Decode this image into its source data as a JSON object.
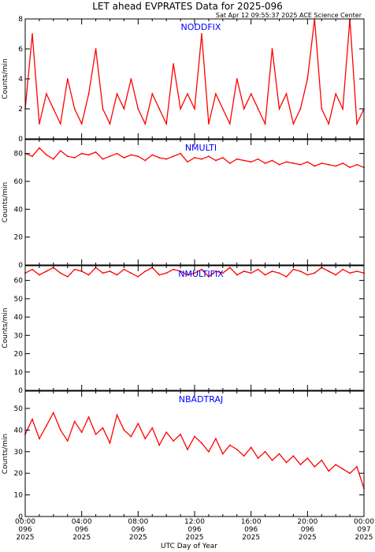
{
  "title": "LET ahead EVPRATES Data for 2025-096",
  "timestamp": "Sat Apr 12 09:55:37 2025 ACE Science Center",
  "xlabel": "UTC Day of Year",
  "colors": {
    "trace": "#ff0000",
    "panel_label": "#0000ff",
    "axis": "#000000"
  },
  "x_ticks": [
    {
      "time": "00:00",
      "doy": "096",
      "year": "2025"
    },
    {
      "time": "04:00",
      "doy": "096",
      "year": "2025"
    },
    {
      "time": "08:00",
      "doy": "096",
      "year": "2025"
    },
    {
      "time": "12:00",
      "doy": "096",
      "year": "2025"
    },
    {
      "time": "16:00",
      "doy": "096",
      "year": "2025"
    },
    {
      "time": "20:00",
      "doy": "096",
      "year": "2025"
    },
    {
      "time": "00:00",
      "doy": "097",
      "year": "2025"
    }
  ],
  "chart_data": [
    {
      "type": "line",
      "name": "NODDFIX",
      "ylabel": "Counts/min",
      "xlim_hours": [
        0,
        24
      ],
      "ylim": [
        0,
        8
      ],
      "yticks": [
        0,
        2,
        4,
        6,
        8
      ],
      "x_hours": [
        0,
        0.5,
        1,
        1.5,
        2,
        2.5,
        3,
        3.5,
        4,
        4.5,
        5,
        5.5,
        6,
        6.5,
        7,
        7.5,
        8,
        8.5,
        9,
        9.5,
        10,
        10.5,
        11,
        11.5,
        12,
        12.5,
        13,
        13.5,
        14,
        14.5,
        15,
        15.5,
        16,
        16.5,
        17,
        17.5,
        18,
        18.5,
        19,
        19.5,
        20,
        20.5,
        21,
        21.5,
        22,
        22.5,
        23,
        23.5,
        24
      ],
      "values": [
        2,
        7,
        1,
        3,
        2,
        1,
        4,
        2,
        1,
        3,
        6,
        2,
        1,
        3,
        2,
        4,
        2,
        1,
        3,
        2,
        1,
        5,
        2,
        3,
        2,
        7,
        1,
        3,
        2,
        1,
        4,
        2,
        3,
        2,
        1,
        6,
        2,
        3,
        1,
        2,
        4,
        8,
        2,
        1,
        3,
        2,
        8,
        1,
        2
      ]
    },
    {
      "type": "line",
      "name": "NMULTI",
      "ylabel": "Counts/min",
      "xlim_hours": [
        0,
        24
      ],
      "ylim": [
        0,
        90
      ],
      "yticks": [
        0,
        20,
        40,
        60,
        80
      ],
      "x_hours": [
        0,
        0.5,
        1,
        1.5,
        2,
        2.5,
        3,
        3.5,
        4,
        4.5,
        5,
        5.5,
        6,
        6.5,
        7,
        7.5,
        8,
        8.5,
        9,
        9.5,
        10,
        10.5,
        11,
        11.5,
        12,
        12.5,
        13,
        13.5,
        14,
        14.5,
        15,
        15.5,
        16,
        16.5,
        17,
        17.5,
        18,
        18.5,
        19,
        19.5,
        20,
        20.5,
        21,
        21.5,
        22,
        22.5,
        23,
        23.5,
        24
      ],
      "values": [
        80,
        78,
        84,
        79,
        76,
        82,
        78,
        77,
        80,
        79,
        81,
        76,
        78,
        80,
        77,
        79,
        78,
        75,
        79,
        77,
        76,
        78,
        80,
        74,
        77,
        76,
        78,
        75,
        77,
        73,
        76,
        75,
        74,
        76,
        73,
        75,
        72,
        74,
        73,
        72,
        74,
        71,
        73,
        72,
        71,
        73,
        70,
        72,
        70
      ]
    },
    {
      "type": "line",
      "name": "NMULTIFIX",
      "ylabel": "Counts/min",
      "xlim_hours": [
        0,
        24
      ],
      "ylim": [
        0,
        68
      ],
      "yticks": [
        0,
        10,
        20,
        30,
        40,
        50,
        60
      ],
      "x_hours": [
        0,
        0.5,
        1,
        1.5,
        2,
        2.5,
        3,
        3.5,
        4,
        4.5,
        5,
        5.5,
        6,
        6.5,
        7,
        7.5,
        8,
        8.5,
        9,
        9.5,
        10,
        10.5,
        11,
        11.5,
        12,
        12.5,
        13,
        13.5,
        14,
        14.5,
        15,
        15.5,
        16,
        16.5,
        17,
        17.5,
        18,
        18.5,
        19,
        19.5,
        20,
        20.5,
        21,
        21.5,
        22,
        22.5,
        23,
        23.5,
        24
      ],
      "values": [
        64,
        66,
        63,
        65,
        67,
        64,
        62,
        66,
        65,
        63,
        67,
        64,
        65,
        63,
        66,
        64,
        62,
        65,
        67,
        63,
        64,
        66,
        65,
        63,
        64,
        66,
        62,
        65,
        64,
        67,
        63,
        65,
        64,
        66,
        63,
        65,
        64,
        62,
        66,
        65,
        63,
        64,
        67,
        65,
        63,
        66,
        64,
        65,
        64
      ]
    },
    {
      "type": "line",
      "name": "NBADTRAJ",
      "ylabel": "Counts/min",
      "xlim_hours": [
        0,
        24
      ],
      "ylim": [
        0,
        58
      ],
      "yticks": [
        0,
        10,
        20,
        30,
        40,
        50
      ],
      "x_hours": [
        0,
        0.5,
        1,
        1.5,
        2,
        2.5,
        3,
        3.5,
        4,
        4.5,
        5,
        5.5,
        6,
        6.5,
        7,
        7.5,
        8,
        8.5,
        9,
        9.5,
        10,
        10.5,
        11,
        11.5,
        12,
        12.5,
        13,
        13.5,
        14,
        14.5,
        15,
        15.5,
        16,
        16.5,
        17,
        17.5,
        18,
        18.5,
        19,
        19.5,
        20,
        20.5,
        21,
        21.5,
        22,
        22.5,
        23,
        23.5,
        24
      ],
      "values": [
        38,
        45,
        36,
        42,
        48,
        40,
        35,
        44,
        39,
        46,
        38,
        41,
        34,
        47,
        40,
        37,
        43,
        36,
        41,
        33,
        39,
        35,
        38,
        31,
        37,
        34,
        30,
        36,
        29,
        33,
        31,
        28,
        32,
        27,
        30,
        26,
        29,
        25,
        28,
        24,
        27,
        23,
        26,
        21,
        24,
        22,
        20,
        23,
        13
      ]
    }
  ]
}
